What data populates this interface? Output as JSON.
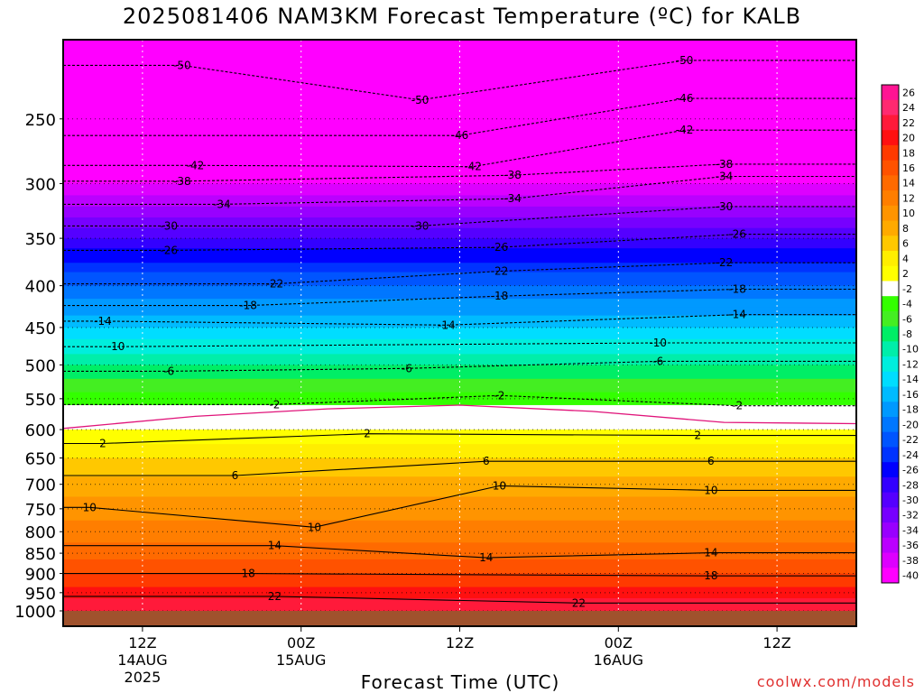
{
  "title": "2025081406 NAM3KM Forecast Temperature (ºC) for KALB",
  "credit": "coolwx.com/models",
  "chart_data": {
    "type": "heatmap",
    "title": "2025081406 NAM3KM Forecast Temperature (ºC) for KALB",
    "xlabel": "Forecast Time (UTC)",
    "ylabel": "",
    "x_ticks": [
      {
        "label": "12Z",
        "sub": [
          "14AUG",
          "2025"
        ],
        "hour": 6
      },
      {
        "label": "00Z",
        "sub": [
          "15AUG"
        ],
        "hour": 18
      },
      {
        "label": "12Z",
        "sub": [],
        "hour": 30
      },
      {
        "label": "00Z",
        "sub": [
          "16AUG"
        ],
        "hour": 42
      },
      {
        "label": "12Z",
        "sub": [],
        "hour": 54
      }
    ],
    "x_range_hours": [
      0,
      60
    ],
    "y_pressure_ticks": [
      250,
      300,
      350,
      400,
      450,
      500,
      550,
      600,
      650,
      700,
      750,
      800,
      850,
      900,
      950,
      1000
    ],
    "y_range_hpa": [
      200,
      1000
    ],
    "colorbar_levels": [
      26,
      24,
      22,
      20,
      18,
      16,
      14,
      12,
      10,
      8,
      6,
      4,
      2,
      -2,
      -4,
      -6,
      -8,
      -10,
      -12,
      -14,
      -16,
      -18,
      -20,
      -22,
      -24,
      -26,
      -28,
      -30,
      -32,
      -34,
      -36,
      -38,
      -40
    ],
    "colorbar_colors": [
      "#ff1493",
      "#ff2a70",
      "#ff1a3a",
      "#ff1010",
      "#ff3a00",
      "#ff5200",
      "#ff6a00",
      "#ff7e00",
      "#ff9400",
      "#ffaa00",
      "#ffc800",
      "#ffee00",
      "#ffff00",
      "#ffffff",
      "#33ff00",
      "#44ee22",
      "#00ee66",
      "#00eeaa",
      "#00eedd",
      "#00ddff",
      "#00bbff",
      "#0099ff",
      "#0077ff",
      "#0055ff",
      "#0033ff",
      "#0000ff",
      "#3300ff",
      "#5500ff",
      "#7700ff",
      "#9900ff",
      "#bb00ff",
      "#dd00ff",
      "#ff00ff"
    ],
    "contour_labels": [
      {
        "value": "-50",
        "hour": 9,
        "hpa": 215
      },
      {
        "value": "-50",
        "hour": 27,
        "hpa": 237
      },
      {
        "value": "-50",
        "hour": 47,
        "hpa": 212
      },
      {
        "value": "-46",
        "hour": 30,
        "hpa": 262
      },
      {
        "value": "-46",
        "hour": 47,
        "hpa": 236
      },
      {
        "value": "-42",
        "hour": 10,
        "hpa": 285
      },
      {
        "value": "-42",
        "hour": 31,
        "hpa": 286
      },
      {
        "value": "-42",
        "hour": 47,
        "hpa": 258
      },
      {
        "value": "-38",
        "hour": 9,
        "hpa": 298
      },
      {
        "value": "-38",
        "hour": 34,
        "hpa": 293
      },
      {
        "value": "-38",
        "hour": 50,
        "hpa": 284
      },
      {
        "value": "-34",
        "hour": 12,
        "hpa": 318
      },
      {
        "value": "-34",
        "hour": 34,
        "hpa": 313
      },
      {
        "value": "-34",
        "hour": 50,
        "hpa": 294
      },
      {
        "value": "-30",
        "hour": 8,
        "hpa": 338
      },
      {
        "value": "-30",
        "hour": 27,
        "hpa": 338
      },
      {
        "value": "-30",
        "hour": 50,
        "hpa": 320
      },
      {
        "value": "-26",
        "hour": 8,
        "hpa": 362
      },
      {
        "value": "-26",
        "hour": 33,
        "hpa": 359
      },
      {
        "value": "-26",
        "hour": 51,
        "hpa": 346
      },
      {
        "value": "-22",
        "hour": 16,
        "hpa": 398
      },
      {
        "value": "-22",
        "hour": 33,
        "hpa": 384
      },
      {
        "value": "-22",
        "hour": 50,
        "hpa": 375
      },
      {
        "value": "-18",
        "hour": 14,
        "hpa": 423
      },
      {
        "value": "-18",
        "hour": 33,
        "hpa": 412
      },
      {
        "value": "-18",
        "hour": 51,
        "hpa": 404
      },
      {
        "value": "-14",
        "hour": 3,
        "hpa": 442
      },
      {
        "value": "-14",
        "hour": 29,
        "hpa": 447
      },
      {
        "value": "-14",
        "hour": 51,
        "hpa": 434
      },
      {
        "value": "-10",
        "hour": 4,
        "hpa": 475
      },
      {
        "value": "-10",
        "hour": 45,
        "hpa": 470
      },
      {
        "value": "-6",
        "hour": 8,
        "hpa": 509
      },
      {
        "value": "-6",
        "hour": 26,
        "hpa": 505
      },
      {
        "value": "-6",
        "hour": 45,
        "hpa": 495
      },
      {
        "value": "-2",
        "hour": 16,
        "hpa": 559
      },
      {
        "value": "-2",
        "hour": 33,
        "hpa": 545
      },
      {
        "value": "-2",
        "hour": 51,
        "hpa": 561
      },
      {
        "value": "2",
        "hour": 3,
        "hpa": 624
      },
      {
        "value": "2",
        "hour": 23,
        "hpa": 607
      },
      {
        "value": "2",
        "hour": 48,
        "hpa": 610
      },
      {
        "value": "6",
        "hour": 13,
        "hpa": 683
      },
      {
        "value": "6",
        "hour": 32,
        "hpa": 656
      },
      {
        "value": "6",
        "hour": 49,
        "hpa": 656
      },
      {
        "value": "10",
        "hour": 2,
        "hpa": 747
      },
      {
        "value": "10",
        "hour": 19,
        "hpa": 790
      },
      {
        "value": "10",
        "hour": 33,
        "hpa": 703
      },
      {
        "value": "10",
        "hour": 49,
        "hpa": 712
      },
      {
        "value": "14",
        "hour": 16,
        "hpa": 832
      },
      {
        "value": "14",
        "hour": 32,
        "hpa": 861
      },
      {
        "value": "14",
        "hour": 49,
        "hpa": 849
      },
      {
        "value": "18",
        "hour": 14,
        "hpa": 900
      },
      {
        "value": "18",
        "hour": 49,
        "hpa": 906
      },
      {
        "value": "22",
        "hour": 16,
        "hpa": 960
      },
      {
        "value": "22",
        "hour": 39,
        "hpa": 978
      }
    ]
  }
}
